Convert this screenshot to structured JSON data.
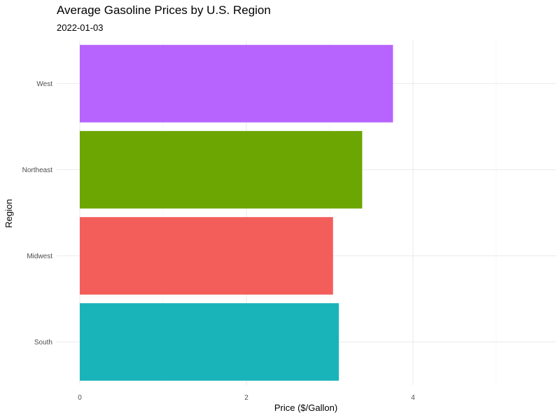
{
  "chart_data": {
    "type": "bar",
    "orientation": "horizontal",
    "title": "Average Gasoline Prices by U.S. Region",
    "subtitle": "2022-01-03",
    "xlabel": "Price ($/Gallon)",
    "ylabel": "Region",
    "categories": [
      "South",
      "Midwest",
      "Northeast",
      "West"
    ],
    "values": [
      3.11,
      3.04,
      3.39,
      3.76
    ],
    "colors": [
      "#19B4BA",
      "#F35E5A",
      "#6BA603",
      "#B764FF"
    ],
    "xlim": [
      0,
      5.7
    ],
    "xticks": [
      0,
      2,
      4
    ],
    "xticks_minor": [
      1,
      3,
      5
    ],
    "grid": true,
    "legend": "none"
  }
}
